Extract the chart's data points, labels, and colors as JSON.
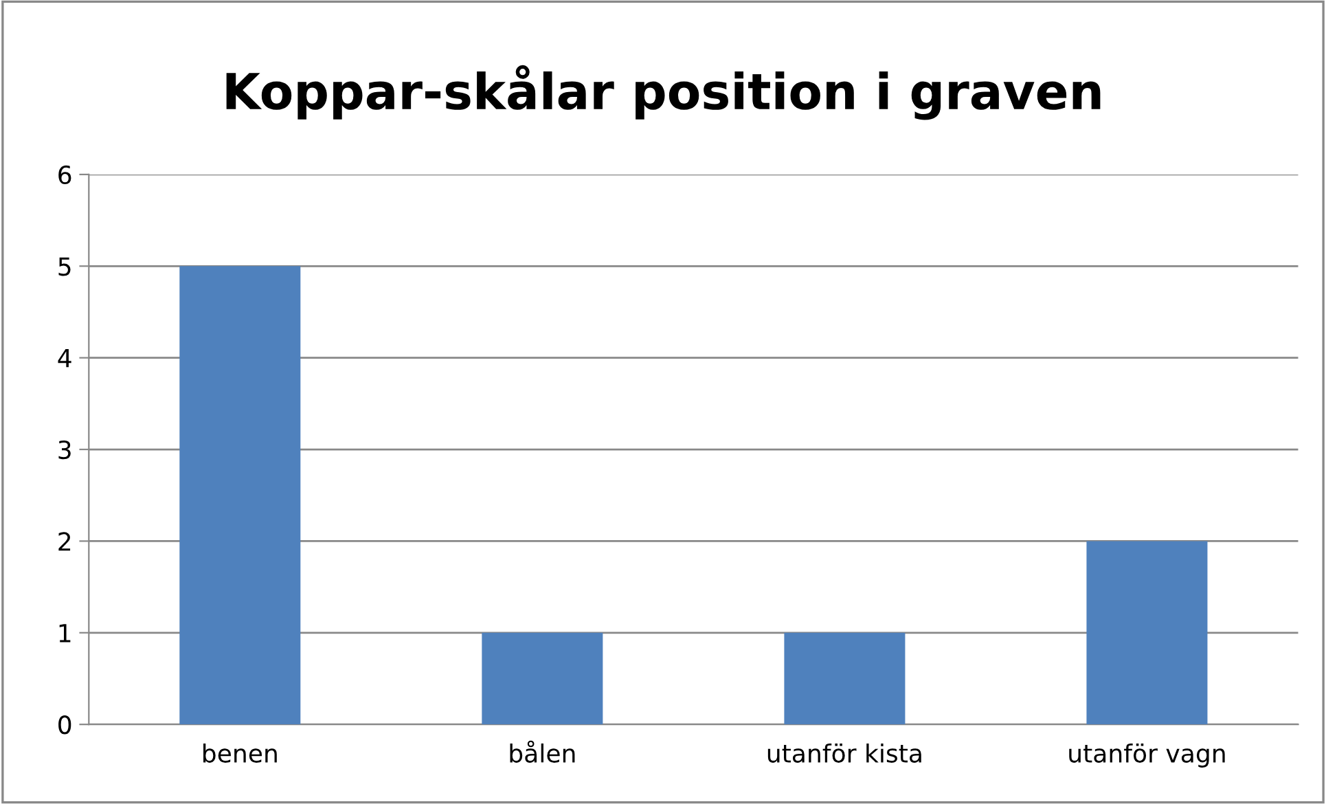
{
  "chart_data": {
    "type": "bar",
    "title": "Koppar-skålar position i graven",
    "categories": [
      "benen",
      "bålen",
      "utanför kista",
      "utanför vagn"
    ],
    "values": [
      5,
      1,
      1,
      2
    ],
    "color": "#4f81bd",
    "ylim": [
      0,
      6
    ],
    "yticks": [
      0,
      1,
      2,
      3,
      4,
      5,
      6
    ],
    "grid": "y",
    "legend": false
  }
}
